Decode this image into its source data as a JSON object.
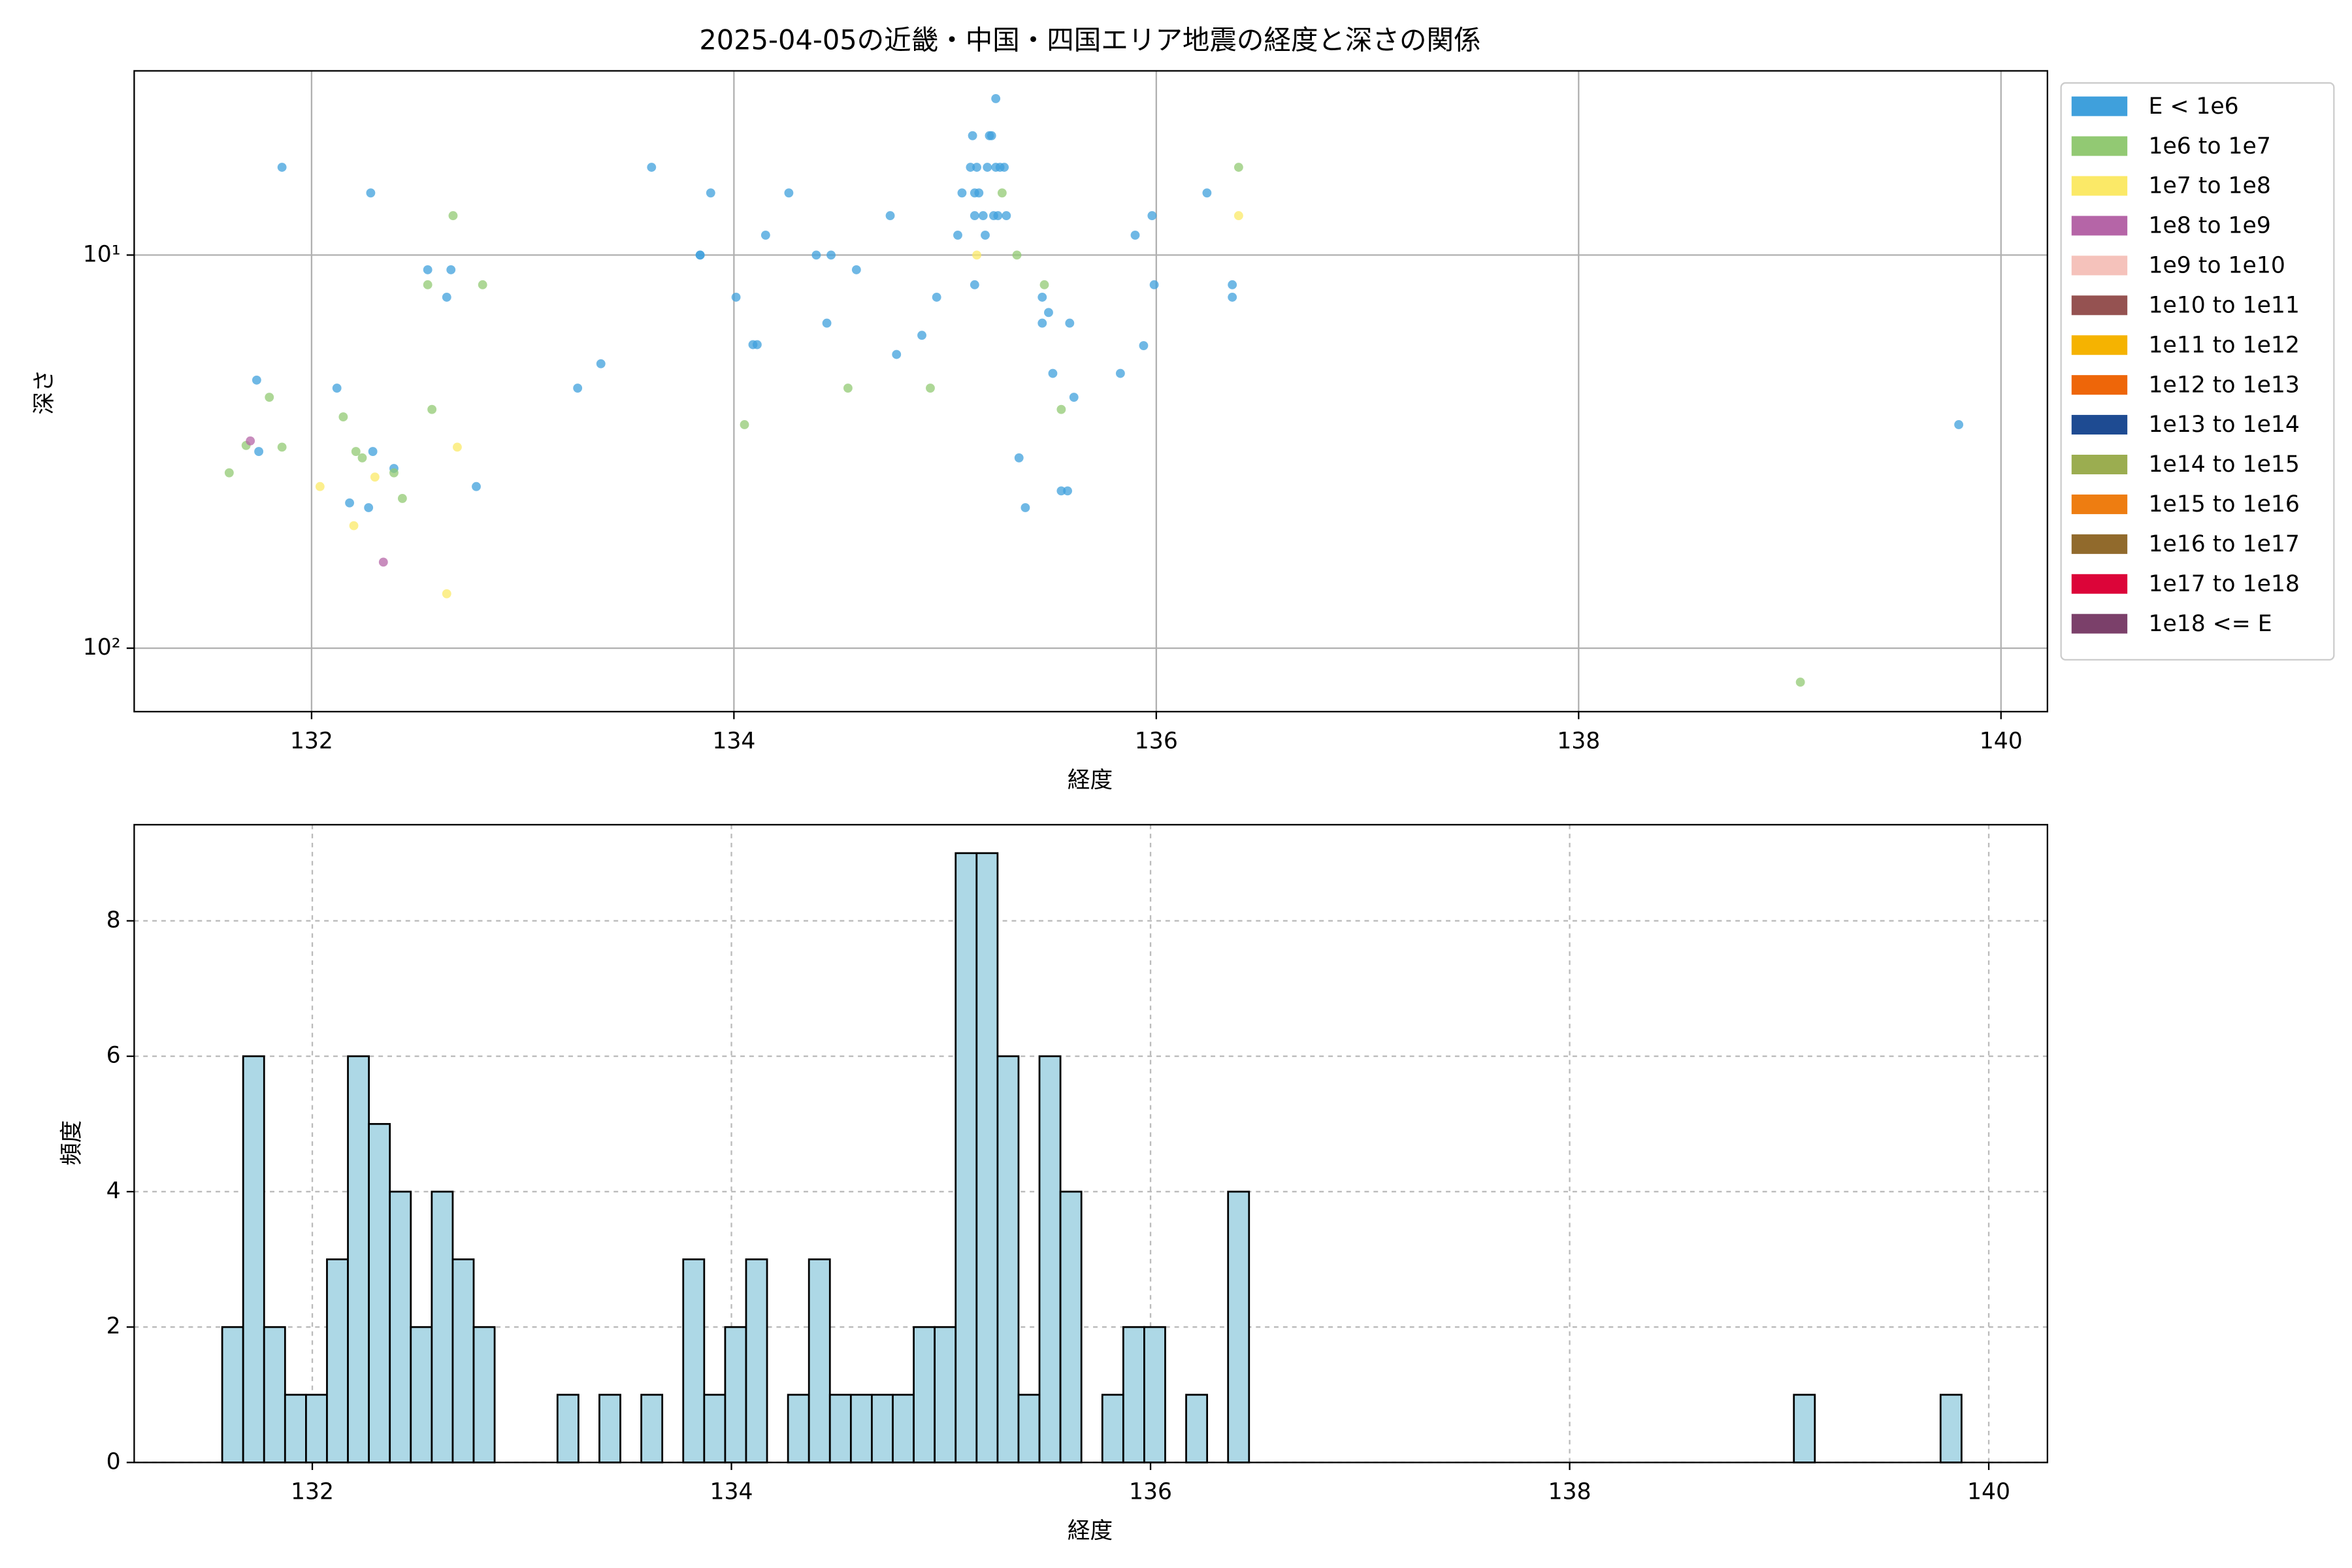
{
  "chart_data": [
    {
      "type": "scatter",
      "title": "2025-04-05の近畿・中国・四国エリア地震の経度と深さの関係",
      "xlabel": "経度",
      "ylabel": "深さ",
      "xlim": [
        131.16,
        140.22
      ],
      "xticks": [
        132,
        134,
        136,
        138,
        140
      ],
      "ylim": [
        3.4,
        145
      ],
      "yscale": "log",
      "y_inverted": true,
      "yticks": [
        {
          "value": 10,
          "label": "10¹"
        },
        {
          "value": 100,
          "label": "10²"
        }
      ],
      "grid": true,
      "legend": "outside right",
      "series": [
        {
          "name": "E < 1e6",
          "color": "#3fa0dc",
          "x": [
            131.86,
            131.74,
            131.75,
            132.28,
            132.12,
            132.18,
            132.27,
            132.29,
            132.39,
            132.55,
            132.64,
            132.66,
            132.78,
            133.26,
            133.37,
            133.61,
            133.84,
            133.84,
            133.89,
            134.01,
            134.09,
            134.11,
            134.15,
            134.26,
            134.39,
            134.46,
            134.44,
            134.58,
            134.74,
            134.77,
            134.89,
            134.96,
            135.06,
            135.08,
            135.13,
            135.12,
            135.15,
            135.14,
            135.16,
            135.14,
            135.14,
            135.18,
            135.19,
            135.2,
            135.21,
            135.22,
            135.23,
            135.24,
            135.25,
            135.26,
            135.28,
            135.29,
            135.24,
            135.35,
            135.38,
            135.46,
            135.46,
            135.49,
            135.51,
            135.55,
            135.58,
            135.59,
            135.61,
            135.83,
            135.9,
            135.94,
            135.98,
            135.99,
            136.24,
            136.36,
            136.36,
            139.8
          ],
          "y": [
            5.98,
            20.8,
            31.6,
            6.95,
            21.8,
            42.7,
            43.9,
            31.6,
            34.9,
            10.9,
            12.8,
            10.9,
            38.8,
            21.8,
            18.9,
            5.98,
            10,
            10,
            6.95,
            12.8,
            16.9,
            16.9,
            8.9,
            6.95,
            10,
            10,
            14.9,
            10.9,
            7.94,
            17.9,
            16.0,
            12.8,
            8.9,
            6.95,
            4.97,
            5.98,
            5.98,
            6.95,
            6.95,
            7.94,
            11.9,
            7.94,
            8.9,
            5.98,
            4.97,
            4.97,
            7.94,
            5.98,
            7.94,
            5.98,
            5.98,
            7.94,
            4.0,
            32.8,
            43.9,
            14.9,
            12.8,
            14.0,
            20,
            39.8,
            39.8,
            14.9,
            23,
            20,
            8.9,
            17,
            7.94,
            11.9,
            6.95,
            11.9,
            12.8,
            27
          ]
        },
        {
          "name": "1e6 to 1e7",
          "color": "#92c973",
          "x": [
            131.61,
            131.69,
            131.8,
            131.86,
            132.15,
            132.21,
            132.24,
            132.39,
            132.43,
            132.55,
            132.57,
            132.67,
            132.81,
            134.05,
            134.54,
            134.93,
            135.27,
            135.34,
            135.47,
            135.55,
            136.39,
            139.05
          ],
          "y": [
            35.8,
            30.5,
            23,
            30.8,
            25.8,
            31.6,
            32.8,
            35.8,
            41.6,
            11.9,
            24.7,
            7.94,
            11.9,
            27,
            21.8,
            21.8,
            6.95,
            10,
            11.9,
            24.7,
            5.98,
            122
          ]
        },
        {
          "name": "1e7 to 1e8",
          "color": "#fbe967",
          "x": [
            132.04,
            132.2,
            132.3,
            132.64,
            132.69,
            135.15,
            136.39
          ],
          "y": [
            38.8,
            48.8,
            36.7,
            72.7,
            30.8,
            10,
            7.94
          ]
        },
        {
          "name": "1e8 to 1e9",
          "color": "#b565a7",
          "x": [
            131.71,
            132.34
          ],
          "y": [
            29.7,
            60.4
          ]
        },
        {
          "name": "1e9 to 1e10",
          "color": "#f5c2bb",
          "x": [],
          "y": []
        },
        {
          "name": "1e10 to 1e11",
          "color": "#955251",
          "x": [],
          "y": []
        },
        {
          "name": "1e11 to 1e12",
          "color": "#f5b301",
          "x": [],
          "y": []
        },
        {
          "name": "1e12 to 1e13",
          "color": "#ee6609",
          "x": [],
          "y": []
        },
        {
          "name": "1e13 to 1e14",
          "color": "#1e4b92",
          "x": [],
          "y": []
        },
        {
          "name": "1e14 to 1e15",
          "color": "#9bad50",
          "x": [],
          "y": []
        },
        {
          "name": "1e15 to 1e16",
          "color": "#ee7d11",
          "x": [],
          "y": []
        },
        {
          "name": "1e16 to 1e17",
          "color": "#916a2c",
          "x": [],
          "y": []
        },
        {
          "name": "1e17 to 1e18",
          "color": "#dc0539",
          "x": [],
          "y": []
        },
        {
          "name": "1e18 <= E",
          "color": "#7b406a",
          "x": [],
          "y": []
        }
      ]
    },
    {
      "type": "histogram",
      "xlabel": "経度",
      "ylabel": "頻度",
      "color": "#add8e6",
      "xlim": [
        131.15,
        140.28
      ],
      "xticks": [
        132,
        134,
        136,
        138,
        140
      ],
      "ylim": [
        0,
        9.42
      ],
      "yticks": [
        0,
        2,
        4,
        6,
        8
      ],
      "grid": "dashed",
      "bins": [
        131.57,
        131.67,
        131.77,
        131.87,
        131.97,
        132.07,
        132.17,
        132.27,
        132.37,
        132.47,
        132.57,
        132.67,
        132.77,
        132.87,
        132.97,
        133.07,
        133.17,
        133.27,
        133.37,
        133.47,
        133.57,
        133.67,
        133.77,
        133.87,
        133.97,
        134.07,
        134.17,
        134.27,
        134.37,
        134.47,
        134.57,
        134.67,
        134.77,
        134.87,
        134.97,
        135.07,
        135.17,
        135.27,
        135.37,
        135.47,
        135.57,
        135.67,
        135.77,
        135.87,
        135.97,
        136.07,
        136.17,
        136.27,
        136.37,
        136.47,
        136.57,
        136.67,
        136.77,
        136.87,
        136.97,
        137.07,
        137.17,
        137.27,
        137.37,
        137.47,
        137.57,
        137.67,
        137.77,
        137.87,
        137.97,
        138.07,
        138.17,
        138.27,
        138.37,
        138.47,
        138.57,
        138.67,
        138.77,
        138.87,
        138.97,
        139.07,
        139.17,
        139.27,
        139.37,
        139.47,
        139.57,
        139.67,
        139.77,
        139.87
      ],
      "values": [
        2,
        6,
        2,
        1,
        1,
        3,
        6,
        5,
        4,
        2,
        4,
        3,
        2,
        0,
        0,
        0,
        1,
        0,
        1,
        0,
        1,
        0,
        3,
        1,
        2,
        3,
        0,
        1,
        3,
        1,
        1,
        1,
        1,
        2,
        2,
        9,
        9,
        6,
        1,
        6,
        4,
        0,
        1,
        2,
        2,
        0,
        1,
        0,
        4,
        0,
        0,
        0,
        0,
        0,
        0,
        0,
        0,
        0,
        0,
        0,
        0,
        0,
        0,
        0,
        0,
        0,
        0,
        0,
        0,
        0,
        0,
        0,
        0,
        0,
        0,
        1,
        0,
        0,
        0,
        0,
        0,
        0,
        1
      ]
    }
  ]
}
